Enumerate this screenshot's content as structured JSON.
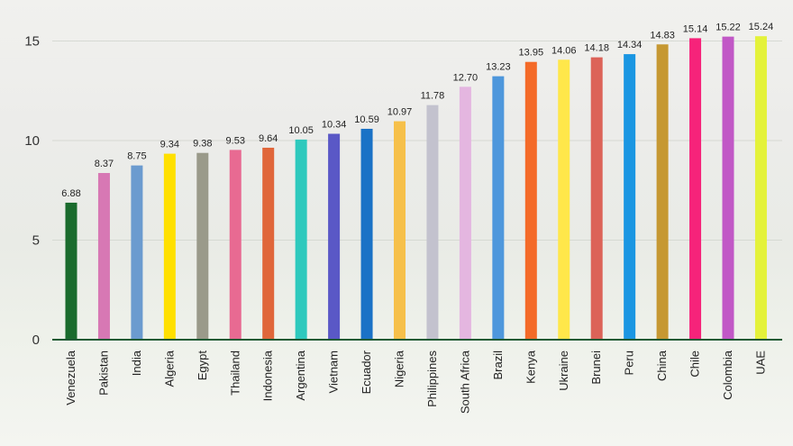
{
  "chart_data": {
    "type": "bar",
    "title": "",
    "xlabel": "",
    "ylabel": "",
    "ylim": [
      0,
      15.5
    ],
    "yticks": [
      0,
      5,
      10,
      15
    ],
    "grid": true,
    "categories": [
      "Venezuela",
      "Pakistan",
      "India",
      "Algeria",
      "Egypt",
      "Thailand",
      "Indonesia",
      "Argentina",
      "Vietnam",
      "Ecuador",
      "Nigeria",
      "Philippines",
      "South Africa",
      "Brazil",
      "Kenya",
      "Ukraine",
      "Brunei",
      "Peru",
      "China",
      "Chile",
      "Colombia",
      "UAE"
    ],
    "values": [
      6.88,
      8.37,
      8.75,
      9.34,
      9.38,
      9.53,
      9.64,
      10.05,
      10.34,
      10.59,
      10.97,
      11.78,
      12.7,
      13.23,
      13.95,
      14.06,
      14.18,
      14.34,
      14.83,
      15.14,
      15.22,
      15.24
    ],
    "value_labels": [
      "6.88",
      "8.37",
      "8.75",
      "9.34",
      "9.38",
      "9.53",
      "9.64",
      "10.05",
      "10.34",
      "10.59",
      "10.97",
      "11.78",
      "12.70",
      "13.23",
      "13.95",
      "14.06",
      "14.18",
      "14.34",
      "14.83",
      "15.14",
      "15.22",
      "15.24"
    ],
    "colors": [
      "#1a6b2d",
      "#d778b4",
      "#6b9bcf",
      "#ffe000",
      "#9a9a8a",
      "#e86a92",
      "#e0663a",
      "#2ec9bd",
      "#5a58c6",
      "#1a72c6",
      "#f6c04a",
      "#c3c2ce",
      "#e4b6e0",
      "#4e97dc",
      "#f46a28",
      "#ffe74a",
      "#dc6358",
      "#1a96e2",
      "#c69832",
      "#f6237a",
      "#c158c6",
      "#e4f23a"
    ]
  }
}
